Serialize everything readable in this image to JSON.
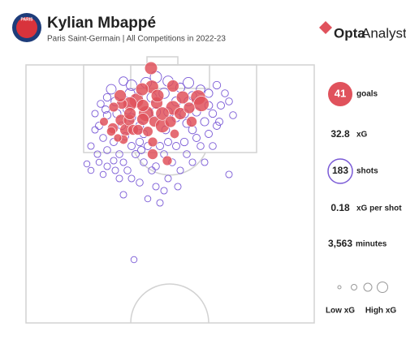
{
  "header": {
    "badge": "PARIS",
    "title": "Kylian Mbappé",
    "subtitle": "Paris Saint-Germain | All Competitions in 2022-23",
    "brand": "Opta",
    "brand_sub": "Analyst"
  },
  "chart_data": {
    "type": "scatter",
    "xlim": [
      0,
      355
    ],
    "ylim": [
      0,
      318
    ],
    "series": [
      {
        "color": "#e0525c",
        "x": [
          154,
          155,
          181,
          136,
          148,
          144,
          158,
          128,
          118,
          117,
          108,
          107,
          123,
          127,
          168,
          181,
          190,
          212,
          216,
          193,
          161,
          168,
          178,
          204,
          156,
          174,
          120,
          132,
          143,
          116,
          96,
          105,
          128,
          156,
          183,
          162,
          201,
          144,
          138,
          150,
          113
        ],
        "y": [
          4,
          27,
          26,
          44,
          60,
          67,
          70,
          48,
          48,
          68,
          52,
          78,
          80,
          68,
          75,
          53,
          60,
          40,
          48,
          40,
          47,
          60,
          70,
          70,
          110,
          118,
          92,
          80,
          30,
          38,
          70,
          82,
          60,
          95,
          85,
          38,
          53,
          50,
          80,
          82,
          90
        ],
        "sizes": [
          0.35,
          0.4,
          0.3,
          0.5,
          0.6,
          0.3,
          0.2,
          0.45,
          0.2,
          0.25,
          0.15,
          0.2,
          0.3,
          0.25,
          0.45,
          0.5,
          0.3,
          0.55,
          0.6,
          0.35,
          0.3,
          0.4,
          0.25,
          0.2,
          0.2,
          0.15,
          0.12,
          0.2,
          0.35,
          0.3,
          0.1,
          0.12,
          0.3,
          0.15,
          0.12,
          0.35,
          0.25,
          0.3,
          0.2,
          0.18,
          0.08
        ]
      },
      {
        "color": "#7a5ad6",
        "x": [
          105,
          120,
          130,
          160,
          175,
          190,
          200,
          215,
          225,
          235,
          110,
          98,
          92,
          100,
          90,
          95,
          85,
          80,
          88,
          100,
          108,
          115,
          120,
          125,
          135,
          140,
          150,
          165,
          170,
          185,
          195,
          205,
          210,
          220,
          230,
          240,
          245,
          250,
          235,
          225,
          215,
          205,
          190,
          175,
          160,
          150,
          165,
          140,
          130,
          110,
          100,
          90,
          80,
          75,
          128,
          138,
          148,
          170,
          185,
          195,
          185,
          172,
          160,
          145,
          130,
          118,
          112,
          125,
          140,
          155,
          200,
          210,
          225,
          198,
          180,
          170,
          155,
          145,
          115,
          95,
          133,
          250,
          238,
          220,
          187,
          100,
          85,
          130,
          175,
          205,
          150,
          122,
          108,
          255,
          198,
          230,
          120,
          160,
          175,
          142
        ],
        "y": [
          30,
          20,
          25,
          15,
          20,
          28,
          22,
          30,
          35,
          25,
          45,
          55,
          48,
          62,
          75,
          90,
          80,
          100,
          110,
          105,
          95,
          110,
          120,
          130,
          110,
          95,
          100,
          100,
          110,
          100,
          95,
          80,
          90,
          70,
          60,
          50,
          35,
          45,
          75,
          85,
          100,
          120,
          130,
          140,
          150,
          165,
          170,
          145,
          140,
          130,
          125,
          120,
          130,
          122,
          35,
          40,
          22,
          35,
          45,
          60,
          65,
          80,
          58,
          85,
          100,
          75,
          60,
          55,
          75,
          40,
          45,
          58,
          50,
          110,
          120,
          155,
          130,
          120,
          140,
          135,
          240,
          135,
          70,
          120,
          150,
          40,
          60,
          65,
          58,
          38,
          60,
          88,
          118,
          62,
          72,
          100,
          160,
          125,
          95,
          105
        ],
        "sizes": [
          0.15,
          0.1,
          0.2,
          0.25,
          0.18,
          0.12,
          0.2,
          0.1,
          0.08,
          0.06,
          0.1,
          0.05,
          0.04,
          0.06,
          0.05,
          0.04,
          0.03,
          0.03,
          0.03,
          0.04,
          0.05,
          0.04,
          0.03,
          0.04,
          0.05,
          0.06,
          0.05,
          0.05,
          0.04,
          0.05,
          0.06,
          0.07,
          0.05,
          0.08,
          0.06,
          0.05,
          0.04,
          0.04,
          0.05,
          0.05,
          0.04,
          0.03,
          0.03,
          0.03,
          0.03,
          0.02,
          0.03,
          0.04,
          0.03,
          0.03,
          0.03,
          0.02,
          0.02,
          0.02,
          0.15,
          0.12,
          0.2,
          0.18,
          0.12,
          0.1,
          0.08,
          0.07,
          0.12,
          0.06,
          0.05,
          0.06,
          0.08,
          0.1,
          0.07,
          0.15,
          0.1,
          0.08,
          0.07,
          0.04,
          0.04,
          0.03,
          0.04,
          0.04,
          0.03,
          0.02,
          0.02,
          0.03,
          0.05,
          0.03,
          0.03,
          0.06,
          0.03,
          0.08,
          0.1,
          0.09,
          0.1,
          0.05,
          0.03,
          0.04,
          0.08,
          0.04,
          0.03,
          0.04,
          0.05,
          0.05
        ]
      }
    ],
    "stats": [
      {
        "value": 41,
        "label": "goals"
      },
      {
        "value": 32.8,
        "label": "xG"
      },
      {
        "value": 183,
        "label": "shots"
      },
      {
        "value": 0.18,
        "label": "xG per shot"
      },
      {
        "value": "3,563",
        "label": "minutes"
      }
    ],
    "legend": {
      "low": "Low xG",
      "high": "High xG"
    }
  }
}
